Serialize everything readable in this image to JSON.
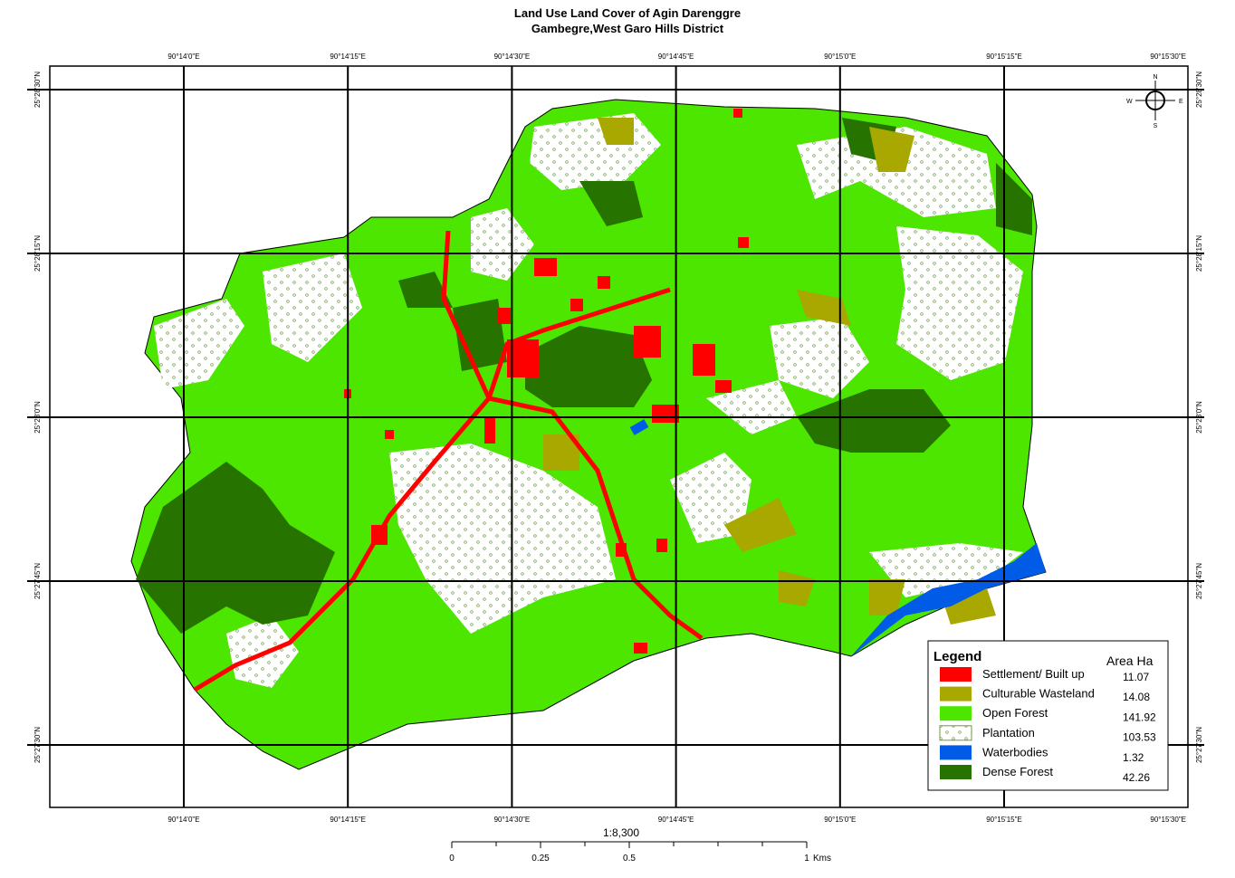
{
  "title": [
    "Land Use Land Cover of Agin Darenggre",
    "Gambegre,West Garo Hills District"
  ],
  "longitude_labels": [
    "90°14'0\"E",
    "90°14'15\"E",
    "90°14'30\"E",
    "90°14'45\"E",
    "90°15'0\"E",
    "90°15'15\"E",
    "90°15'30\"E"
  ],
  "latitude_labels": [
    "25°28'30\"N",
    "25°28'15\"N",
    "25°28'0\"N",
    "25°27'45\"N",
    "25°27'30\"N"
  ],
  "compass": {
    "n": "N",
    "s": "S",
    "e": "E",
    "w": "W"
  },
  "legend": {
    "title": "Legend",
    "area_header": "Area Ha",
    "classes": [
      {
        "name": "Settlement/ Built up",
        "area": 11.07,
        "color": "#ff0000"
      },
      {
        "name": "Culturable Wasteland",
        "area": 14.08,
        "color": "#a8a800"
      },
      {
        "name": "Open Forest",
        "area": 141.92,
        "color": "#4ce600"
      },
      {
        "name": "Plantation",
        "area": 103.53,
        "color": "pattern"
      },
      {
        "name": "Waterbodies",
        "area": 1.32,
        "color": "#005ce6"
      },
      {
        "name": "Dense Forest",
        "area": 42.26,
        "color": "#267300"
      }
    ]
  },
  "scale": {
    "ratio": "1:8,300",
    "ticks": [
      0,
      0.25,
      0.5,
      1
    ],
    "unit": "Kms"
  }
}
